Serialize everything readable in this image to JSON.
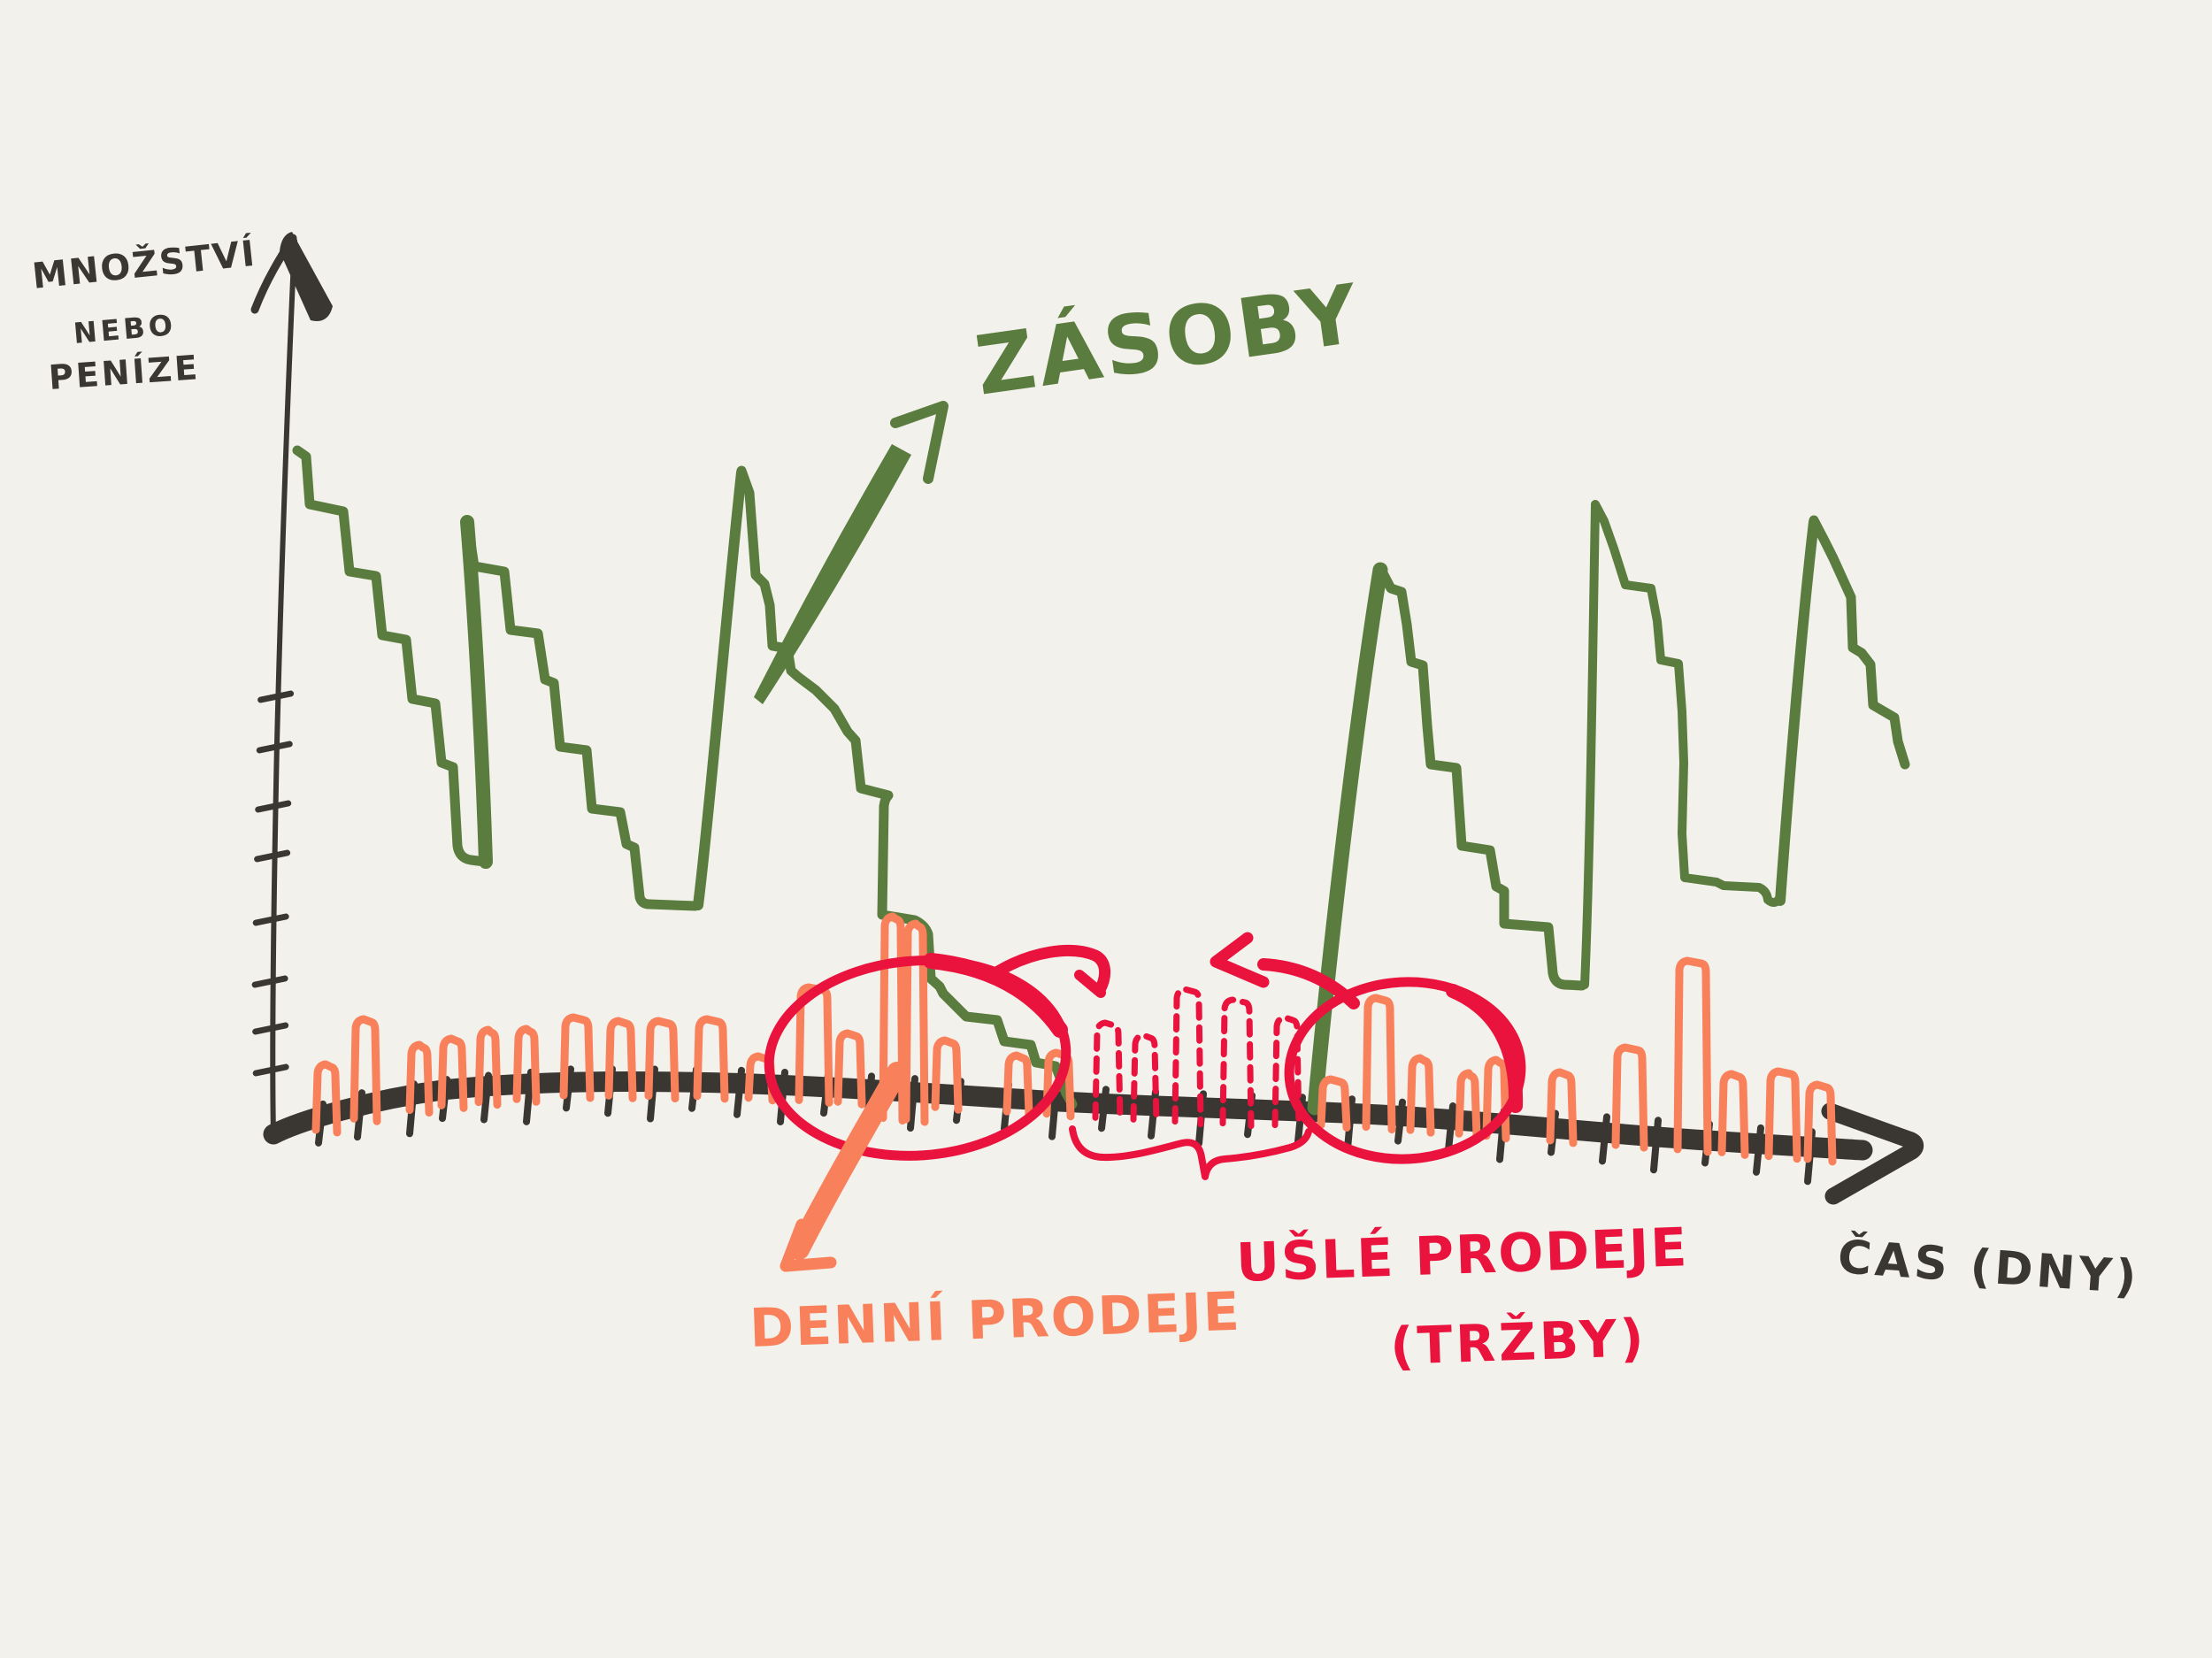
{
  "page": {
    "background": "#f3f1ec",
    "kind": "hand-drawn inventory sketch"
  },
  "colors": {
    "ink": "#3a3733",
    "green": "#5b7c3f",
    "orange": "#f8815b",
    "red": "#e9133d"
  },
  "labels": {
    "y_axis_line1": "MNOŽSTVÍ",
    "y_axis_line2": "NEBO",
    "y_axis_line3": "PENÍZE",
    "inventory": "ZÁSOBY",
    "daily_sales": "DENNÍ PRODEJE",
    "lost_sales": "UŠLÉ PRODEJE",
    "lost_sales_sub": "(TRŽBY)",
    "x_axis": "ČAS (DNY)"
  },
  "figure": {
    "type": "hand-drawn sketch chart",
    "series": [
      {
        "name": "ZÁSOBY",
        "style": "green stepped sawtooth line (stock declining in steps, sharp replenishment rises)",
        "teeth": 6
      },
      {
        "name": "DENNÍ PRODEJE",
        "style": "small orange outlined bars standing on the time axis",
        "bar_count": 29
      },
      {
        "name": "UŠLÉ PRODEJE (TRŽBY)",
        "style": "red dashed bars during stockout period",
        "bar_count": 5
      }
    ],
    "annotations": [
      "red ellipse around first stockout region",
      "red ellipse around second stockout region",
      "red arrow curving right from first ellipse",
      "red arrow pointing up-left from second ellipse",
      "red brace under lost-sales period",
      "orange arrow from first ellipse down to daily-sales label",
      "green arrow pointing up-right to inventory label",
      "axis arrowheads on both axes"
    ]
  }
}
